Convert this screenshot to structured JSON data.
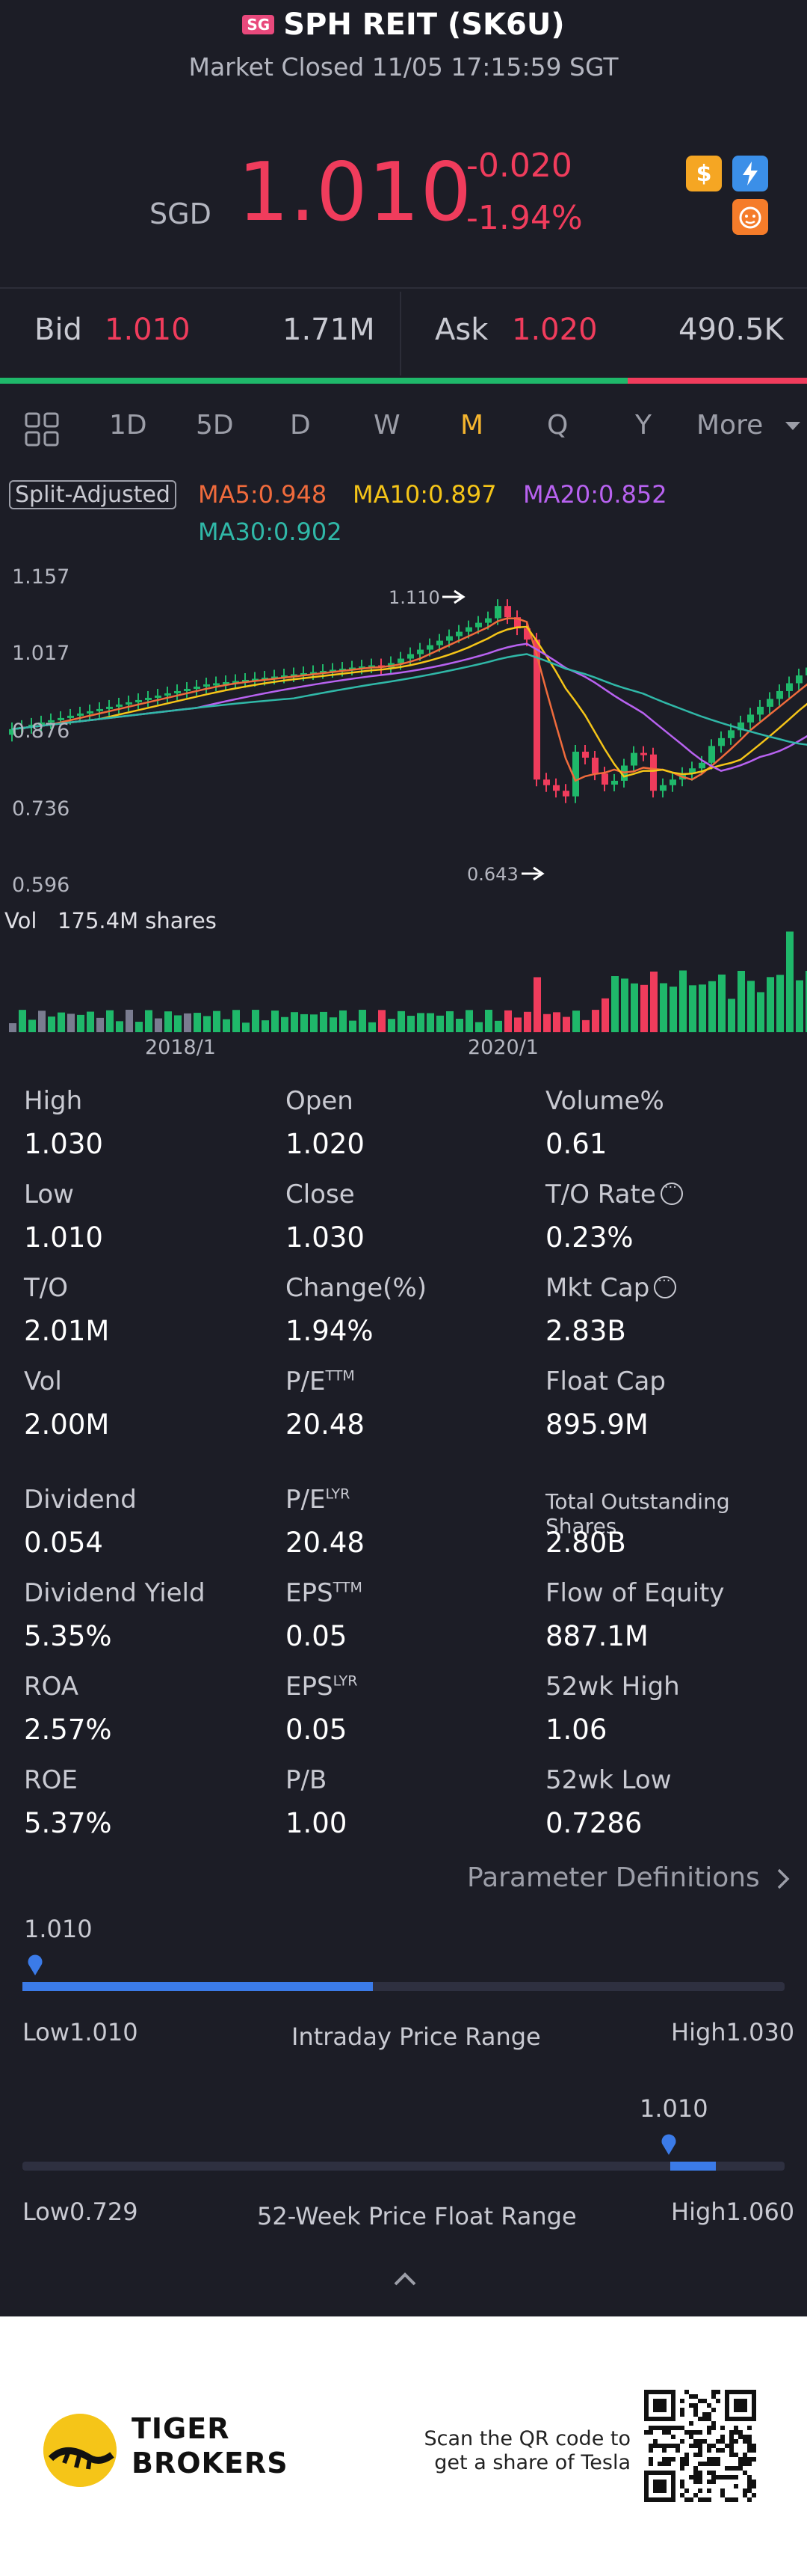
{
  "header": {
    "region_badge": "SG",
    "title": "SPH REIT (SK6U)",
    "status": "Market Closed 11/05 17:15:59 SGT",
    "currency": "SGD",
    "price": "1.010",
    "change": "-0.020",
    "change_pct": "-1.94%",
    "icons": [
      "dollar-icon",
      "lightning-icon",
      "tiger-face-icon"
    ]
  },
  "quote": {
    "bid_label": "Bid",
    "bid_price": "1.010",
    "bid_size": "1.71M",
    "ask_label": "Ask",
    "ask_price": "1.020",
    "ask_size": "490.5K",
    "bid_ratio": 0.778
  },
  "periods": [
    "1D",
    "5D",
    "D",
    "W",
    "M",
    "Q",
    "Y",
    "More"
  ],
  "active_period": "M",
  "chart": {
    "adjust_label": "Split-Adjusted",
    "ma": [
      {
        "label": "MA5:0.948",
        "color": "#f06b3c"
      },
      {
        "label": "MA10:0.897",
        "color": "#f5c518"
      },
      {
        "label": "MA20:0.852",
        "color": "#b862f0"
      },
      {
        "label": "MA30:0.902",
        "color": "#30b8a8"
      }
    ],
    "y_ticks": [
      "1.157",
      "1.017",
      "0.876",
      "0.736",
      "0.596"
    ],
    "high_marker": "1.110",
    "low_marker": "0.643",
    "volume_label": "Vol",
    "volume_value": "175.4M shares",
    "x_ticks": [
      "2018/1",
      "2020/1"
    ]
  },
  "stats": [
    [
      {
        "k": "High",
        "v": "1.030"
      },
      {
        "k": "Open",
        "v": "1.020"
      },
      {
        "k": "Volume%",
        "v": "0.61"
      }
    ],
    [
      {
        "k": "Low",
        "v": "1.010"
      },
      {
        "k": "Close",
        "v": "1.030"
      },
      {
        "k": "T/O Rate",
        "v": "0.23%",
        "info": true
      }
    ],
    [
      {
        "k": "T/O",
        "v": "2.01M"
      },
      {
        "k": "Change(%)",
        "v": "1.94%"
      },
      {
        "k": "Mkt Cap",
        "v": "2.83B",
        "info": true
      }
    ],
    [
      {
        "k": "Vol",
        "v": "2.00M"
      },
      {
        "k": "P/E",
        "sup": "TTM",
        "v": "20.48"
      },
      {
        "k": "Float Cap",
        "v": "895.9M"
      }
    ],
    [
      {
        "k": "Dividend",
        "v": "0.054"
      },
      {
        "k": "P/E",
        "sup": "LYR",
        "v": "20.48"
      },
      {
        "k": "Total Outstanding Shares",
        "v": "2.80B",
        "small": true
      }
    ],
    [
      {
        "k": "Dividend Yield",
        "v": "5.35%"
      },
      {
        "k": "EPS",
        "sup": "TTM",
        "v": "0.05"
      },
      {
        "k": "Flow of Equity",
        "v": "887.1M"
      }
    ],
    [
      {
        "k": "ROA",
        "v": "2.57%"
      },
      {
        "k": "EPS",
        "sup": "LYR",
        "v": "0.05"
      },
      {
        "k": "52wk High",
        "v": "1.06"
      }
    ],
    [
      {
        "k": "ROE",
        "v": "5.37%"
      },
      {
        "k": "P/B",
        "v": "1.00"
      },
      {
        "k": "52wk Low",
        "v": "0.7286"
      }
    ]
  ],
  "param_definitions": "Parameter Definitions",
  "intraday_range": {
    "current": "1.010",
    "low": "Low1.010",
    "high": "High1.030",
    "title": "Intraday Price Range",
    "position": 0.0,
    "fill_end": 0.46
  },
  "week52_range": {
    "current": "1.010",
    "low": "Low0.729",
    "high": "High1.060",
    "title": "52-Week Price Float Range",
    "position": 0.85,
    "fill_start": 0.85,
    "fill_end": 0.91
  },
  "footer": {
    "brand_line1": "TIGER",
    "brand_line2": "BROKERS",
    "qr_line1": "Scan the QR code to",
    "qr_line2": "get a share of Tesla"
  }
}
